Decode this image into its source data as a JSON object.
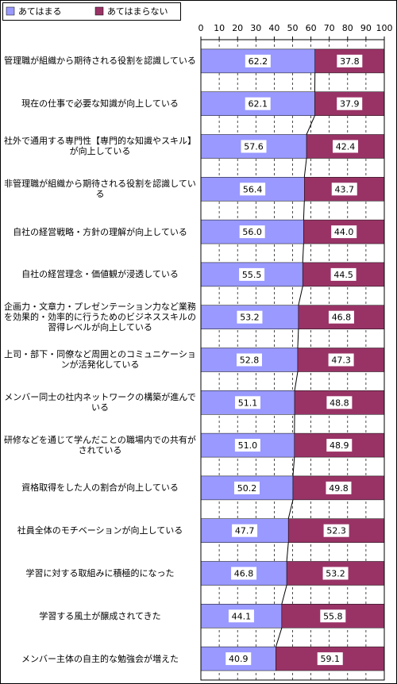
{
  "chart_data": {
    "type": "stacked-bar-horizontal",
    "categories": [
      "管理職が組織から期待される役割を認識している",
      "現在の仕事で必要な知識が向上している",
      "社外で通用する専門性【専門的な知識やスキル】が向上している",
      "非管理職が組織から期待される役割を認識している",
      "自社の経営戦略・方針の理解が向上している",
      "自社の経営理念・価値観が浸透している",
      "企画力・文章力・プレゼンテーション力など業務を効果的・効率的に行うためのビジネススキルの習得レベルが向上している",
      "上司・部下・同僚など周囲とのコミュニケーションが活発化している",
      "メンバー同士の社内ネットワークの構築が進んでいる",
      "研修などを通じて学んだことの職場内での共有がされている",
      "資格取得をした人の割合が向上している",
      "社員全体のモチベーションが向上している",
      "学習に対する取組みに積極的になった",
      "学習する風土が醸成されてきた",
      "メンバー主体の自主的な勉強会が増えた"
    ],
    "series": [
      {
        "name": "あてはまる",
        "color": "#9999ff",
        "values": [
          62.2,
          62.1,
          57.6,
          56.4,
          56.0,
          55.5,
          53.2,
          52.8,
          51.1,
          51.0,
          50.2,
          47.7,
          46.8,
          44.1,
          40.9
        ],
        "value_labels": [
          "62.2",
          "62.1",
          "57.6",
          "56.4",
          "56.0",
          "55.5",
          "53.2",
          "52.8",
          "51.1",
          "51.0",
          "50.2",
          "47.7",
          "46.8",
          "44.1",
          "40.9"
        ]
      },
      {
        "name": "あてはまらない",
        "color": "#993366",
        "values": [
          37.8,
          37.9,
          42.4,
          43.7,
          44.0,
          44.5,
          46.8,
          47.3,
          48.8,
          48.9,
          49.8,
          52.3,
          53.2,
          55.8,
          59.1
        ],
        "value_labels": [
          "37.8",
          "37.9",
          "42.4",
          "43.7",
          "44.0",
          "44.5",
          "46.8",
          "47.3",
          "48.8",
          "48.9",
          "49.8",
          "52.3",
          "53.2",
          "55.8",
          "59.1"
        ]
      }
    ],
    "xlim": [
      0,
      100
    ],
    "xticks": [
      0,
      10,
      20,
      30,
      40,
      50,
      60,
      70,
      80,
      90,
      100
    ],
    "grid": true,
    "legend": "top-left"
  }
}
